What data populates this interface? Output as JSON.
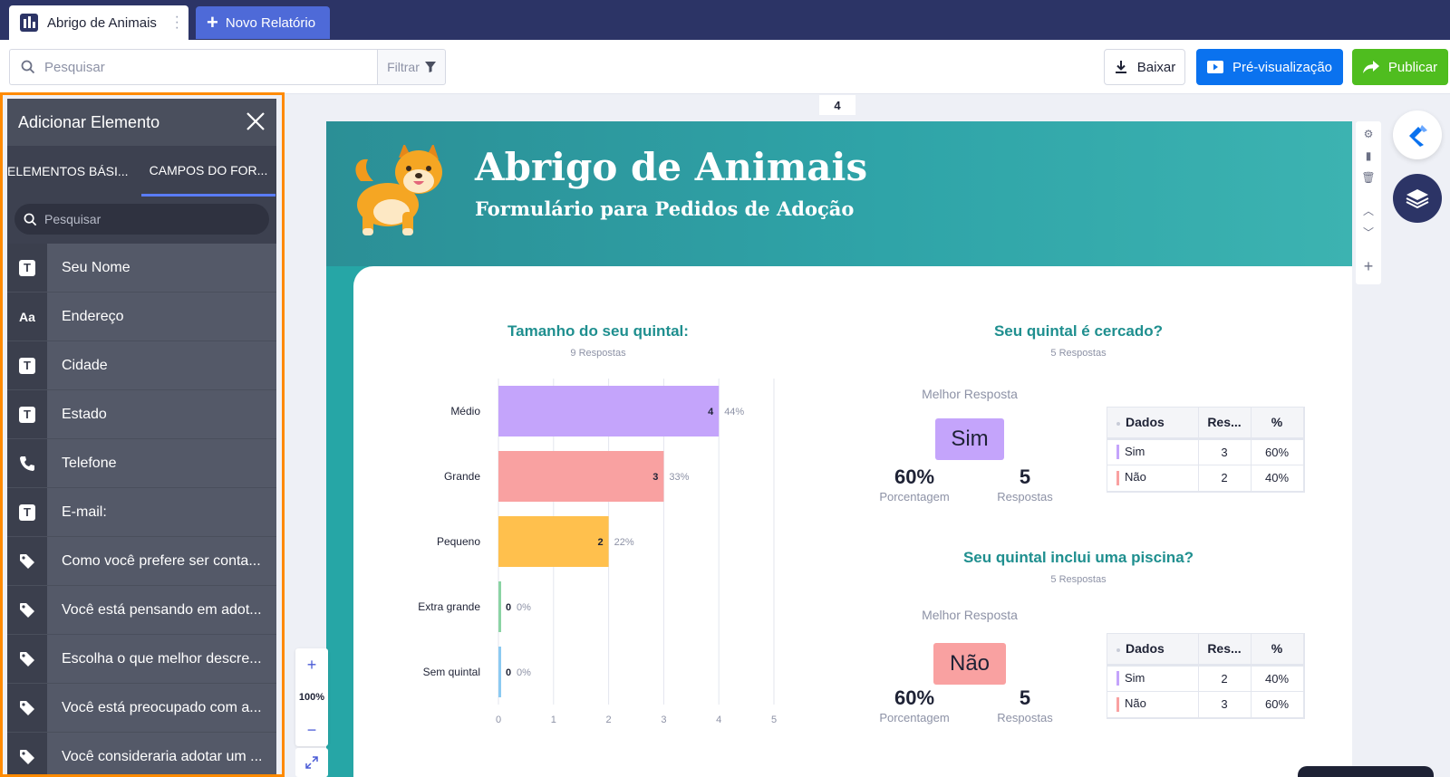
{
  "app": {
    "tab_title": "Abrigo de Animais",
    "new_report_label": "Novo Relatório"
  },
  "toolbar": {
    "search_placeholder": "Pesquisar",
    "filter_label": "Filtrar",
    "download_label": "Baixar",
    "preview_label": "Pré-visualização",
    "publish_label": "Publicar",
    "accent_preview": "#0a72ef",
    "accent_publish": "#4fbd1f"
  },
  "panel": {
    "title": "Adicionar Elemento",
    "tabs": [
      "ELEMENTOS BÁSI...",
      "CAMPOS DO FOR..."
    ],
    "active_tab": 1,
    "search_placeholder": "Pesquisar",
    "fields": [
      {
        "icon": "text-icon",
        "label": "Seu Nome"
      },
      {
        "icon": "address-icon",
        "label": "Endereço"
      },
      {
        "icon": "text-icon",
        "label": "Cidade"
      },
      {
        "icon": "text-icon",
        "label": "Estado"
      },
      {
        "icon": "phone-icon",
        "label": "Telefone"
      },
      {
        "icon": "text-icon",
        "label": "E-mail:"
      },
      {
        "icon": "tag-icon",
        "label": "Como você prefere ser conta..."
      },
      {
        "icon": "tag-icon",
        "label": "Você está pensando em adot..."
      },
      {
        "icon": "tag-icon",
        "label": "Escolha o que melhor descre..."
      },
      {
        "icon": "tag-icon",
        "label": "Você está preocupado com a..."
      },
      {
        "icon": "tag-icon",
        "label": "Você consideraria adotar um ..."
      }
    ]
  },
  "report": {
    "page_number": "4",
    "title": "Abrigo de Animais",
    "subtitle": "Formulário para Pedidos de Adoção",
    "zoom_level": "100%"
  },
  "chart_data": {
    "type": "bar",
    "orientation": "horizontal",
    "title": "Tamanho do seu quintal:",
    "subtitle": "9 Respostas",
    "categories": [
      "Médio",
      "Grande",
      "Pequeno",
      "Extra grande",
      "Sem quintal"
    ],
    "values": [
      4,
      3,
      2,
      0,
      0
    ],
    "percent_labels": [
      "44%",
      "33%",
      "22%",
      "0%",
      "0%"
    ],
    "colors": [
      "#c4a4fb",
      "#f9a1a1",
      "#ffc04d",
      "#8bd4a4",
      "#8ccaf2"
    ],
    "xlim": [
      0,
      5
    ],
    "x_ticks": [
      "0",
      "1",
      "2",
      "3",
      "4",
      "5"
    ],
    "grid": true
  },
  "summaries": [
    {
      "title": "Seu quintal é cercado?",
      "subtitle": "5 Respostas",
      "best_label": "Melhor Resposta",
      "best_answer": "Sim",
      "best_color": "#c4a4fb",
      "percentage": "60%",
      "percentage_label": "Porcentagem",
      "responses": "5",
      "responses_label": "Respostas",
      "table": {
        "headers": [
          "Dados",
          "Res...",
          "%"
        ],
        "rows": [
          {
            "label": "Sim",
            "count": "3",
            "pct": "60%",
            "color": "#c4a4fb"
          },
          {
            "label": "Não",
            "count": "2",
            "pct": "40%",
            "color": "#f9a1a1"
          }
        ]
      }
    },
    {
      "title": "Seu quintal inclui uma piscina?",
      "subtitle": "5 Respostas",
      "best_label": "Melhor Resposta",
      "best_answer": "Não",
      "best_color": "#f9a1a1",
      "percentage": "60%",
      "percentage_label": "Porcentagem",
      "responses": "5",
      "responses_label": "Respostas",
      "table": {
        "headers": [
          "Dados",
          "Res...",
          "%"
        ],
        "rows": [
          {
            "label": "Sim",
            "count": "2",
            "pct": "40%",
            "color": "#c4a4fb"
          },
          {
            "label": "Não",
            "count": "3",
            "pct": "60%",
            "color": "#f9a1a1"
          }
        ]
      }
    }
  ]
}
